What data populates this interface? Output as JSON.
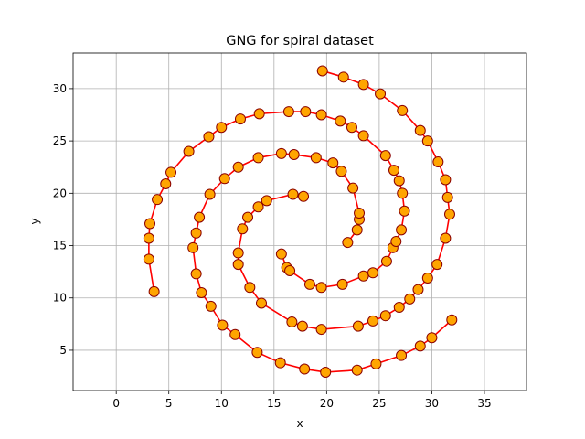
{
  "chart_data": {
    "type": "graph",
    "title": "GNG for spiral dataset",
    "x_label": "x",
    "y_label": "y",
    "xlim": [
      -4.1,
      39.0
    ],
    "ylim": [
      1.15,
      33.4
    ],
    "xticks": [
      0,
      5,
      10,
      15,
      20,
      25,
      30,
      35
    ],
    "yticks": [
      5,
      10,
      15,
      20,
      25,
      30
    ],
    "grid": true,
    "edge_color": "#ff0000",
    "node_color": "#ffa500",
    "node_edge_color": "#8b0000",
    "series": [
      {
        "x": [
          15.7,
          16.2,
          16.5,
          18.4,
          19.5,
          21.5,
          23.5,
          24.4,
          25.7,
          26.3,
          26.6,
          27.1,
          27.4,
          27.2,
          26.9,
          26.4,
          25.6,
          23.5,
          22.4,
          21.3,
          19.5,
          18.0,
          16.4,
          13.6,
          11.8,
          10.0,
          8.8,
          6.9,
          5.2,
          4.7,
          3.9,
          3.2,
          3.1,
          3.1,
          3.6
        ],
        "y": [
          14.2,
          12.9,
          12.6,
          11.3,
          11.0,
          11.3,
          12.1,
          12.4,
          13.5,
          14.8,
          15.4,
          16.5,
          18.3,
          20.0,
          21.2,
          22.2,
          23.6,
          25.5,
          26.3,
          26.9,
          27.5,
          27.8,
          27.8,
          27.6,
          27.1,
          26.3,
          25.4,
          24.0,
          22.0,
          20.9,
          19.4,
          17.1,
          15.7,
          13.7,
          10.6
        ]
      },
      {
        "x": [
          22.0,
          22.9,
          23.1,
          23.1,
          22.5,
          21.4,
          20.6,
          19.0,
          16.9,
          15.7,
          13.5,
          11.6,
          10.3,
          8.9,
          7.9,
          7.6,
          7.3,
          7.6,
          8.1,
          9.0,
          10.1,
          11.3,
          13.4,
          15.6,
          17.9,
          19.9,
          22.9,
          24.7,
          27.1,
          28.9,
          30.0,
          31.9
        ],
        "y": [
          15.3,
          16.5,
          17.5,
          18.1,
          20.5,
          22.1,
          22.9,
          23.4,
          23.7,
          23.8,
          23.4,
          22.5,
          21.4,
          19.9,
          17.7,
          16.2,
          14.8,
          12.3,
          10.5,
          9.2,
          7.4,
          6.5,
          4.8,
          3.8,
          3.2,
          2.9,
          3.1,
          3.7,
          4.5,
          5.4,
          6.2,
          7.9
        ]
      },
      {
        "x": [
          19.6,
          21.6,
          23.5,
          25.1,
          27.2,
          28.9,
          29.6,
          30.6,
          31.3,
          31.5,
          31.7,
          31.3,
          30.5,
          29.6,
          28.7,
          27.9,
          26.9,
          25.6,
          24.4,
          23.0,
          19.5,
          17.7,
          16.7,
          13.8,
          12.7,
          11.6,
          11.6,
          12.0,
          12.5,
          13.5,
          14.3,
          16.8,
          17.8
        ],
        "y": [
          31.7,
          31.1,
          30.4,
          29.5,
          27.9,
          26.0,
          25.0,
          23.0,
          21.3,
          19.6,
          18.0,
          15.7,
          13.2,
          11.9,
          10.8,
          9.9,
          9.1,
          8.3,
          7.8,
          7.3,
          7.0,
          7.3,
          7.7,
          9.5,
          11.0,
          13.2,
          14.3,
          16.6,
          17.7,
          18.7,
          19.3,
          19.9,
          19.7
        ]
      }
    ]
  }
}
